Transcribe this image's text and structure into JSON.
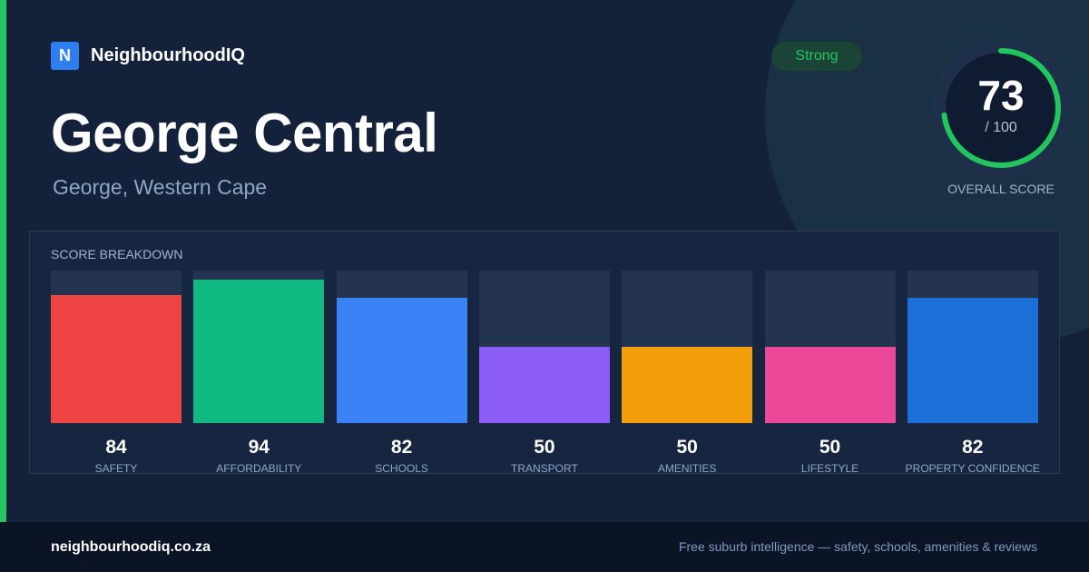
{
  "brand": {
    "logo_letter": "N",
    "name": "NeighbourhoodIQ",
    "color": "#2f7ef0"
  },
  "location": {
    "name": "George Central",
    "region": "George, Western Cape"
  },
  "rating_badge": "Strong",
  "overall": {
    "value": "73",
    "max": "/ 100",
    "caption": "OVERALL SCORE",
    "score": 73,
    "ring_color": "#22c55e"
  },
  "breakdown": {
    "title": "SCORE BREAKDOWN"
  },
  "chart_data": {
    "type": "bar",
    "title": "SCORE BREAKDOWN",
    "categories": [
      "SAFETY",
      "AFFORDABILITY",
      "SCHOOLS",
      "TRANSPORT",
      "AMENITIES",
      "LIFESTYLE",
      "PROPERTY CONFIDENCE"
    ],
    "values": [
      84,
      94,
      82,
      50,
      50,
      50,
      82
    ],
    "colors": [
      "#ef4444",
      "#10b981",
      "#3b82f6",
      "#8b5cf6",
      "#f59e0b",
      "#ec4899",
      "#1d6fd8"
    ],
    "ylim": [
      0,
      100
    ],
    "grid": false
  },
  "footer": {
    "url": "neighbourhoodiq.co.za",
    "tagline": "Free suburb intelligence — safety, schools, amenities & reviews"
  }
}
